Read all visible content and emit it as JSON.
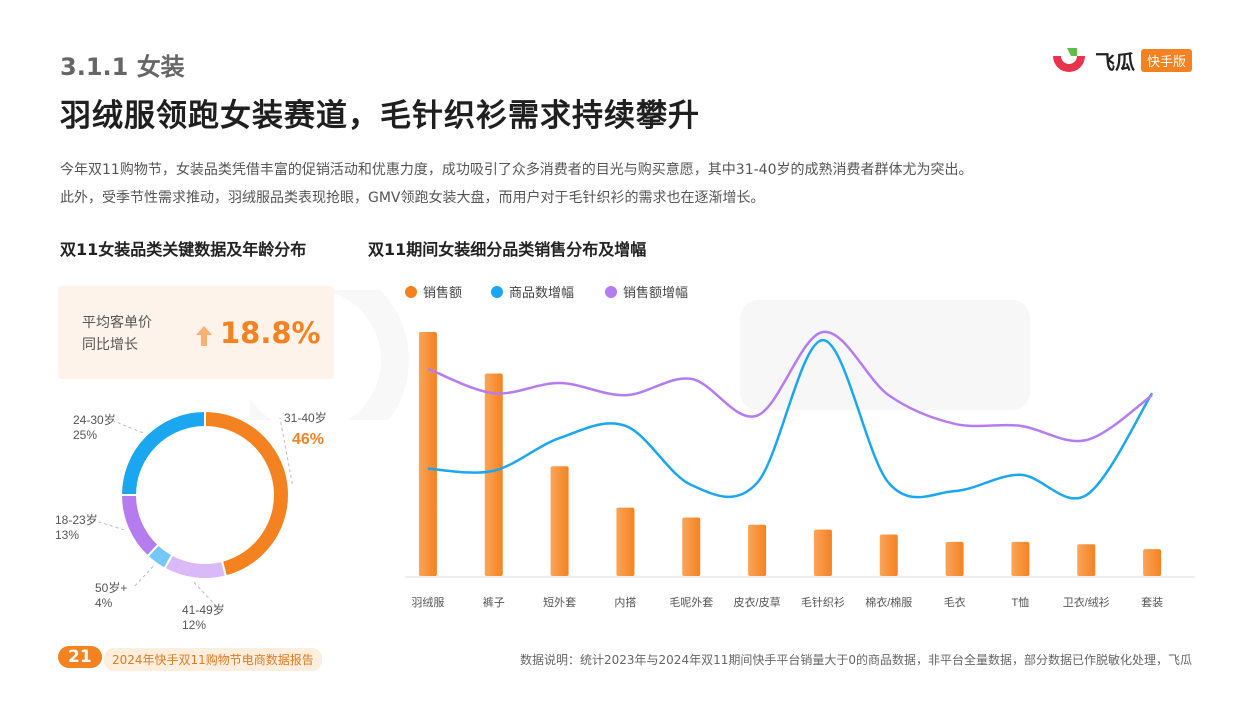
{
  "header": {
    "section": "3.1.1 女装",
    "title": "羽绒服领跑女装赛道，毛针织衫需求持续攀升",
    "description_1": "今年双11购物节，女装品类凭借丰富的促销活动和优惠力度，成功吸引了众多消费者的目光与购买意愿，其中31-40岁的成熟消费者群体尤为突出。",
    "description_2": "此外，受季节性需求推动，羽绒服品类表现抢眼，GMV领跑女装大盘，而用户对于毛针织衫的需求也在逐渐增长。"
  },
  "logo": {
    "name": "飞瓜",
    "tag": "快手版"
  },
  "left_panel": {
    "subtitle": "双11女装品类关键数据及年龄分布",
    "kpi_label_1": "平均客单价",
    "kpi_label_2": "同比增长",
    "kpi_value": "18.8%"
  },
  "right_panel": {
    "subtitle": "双11期间女装细分品类销售分布及增幅"
  },
  "footer": {
    "page_number": "21",
    "report_title": "2024年快手双11购物节电商数据报告",
    "note": "数据说明：统计2023年与2024年双11期间快手平台销量大于0的商品数据，非平台全量数据，部分数据已作脱敏化处理，飞瓜"
  },
  "colors": {
    "orange": "#f58220",
    "blue": "#1aa7f0",
    "purple": "#b57cf0",
    "light_purple": "#d9b9f7",
    "light_blue": "#73c8f7"
  },
  "chart_data": [
    {
      "type": "pie",
      "variant": "donut",
      "slices": [
        {
          "label": "31-40岁",
          "value": 46,
          "value_text": "46%",
          "color": "#f58220"
        },
        {
          "label": "41-49岁",
          "value": 12,
          "value_text": "12%",
          "color": "#d9b9f7"
        },
        {
          "label": "50岁+",
          "value": 4,
          "value_text": "4%",
          "color": "#73c8f7"
        },
        {
          "label": "18-23岁",
          "value": 13,
          "value_text": "13%",
          "color": "#b57cf0"
        },
        {
          "label": "24-30岁",
          "value": 25,
          "value_text": "25%",
          "color": "#1aa7f0"
        }
      ]
    },
    {
      "type": "bar",
      "categories": [
        "羽绒服",
        "裤子",
        "短外套",
        "内搭",
        "毛呢外套",
        "皮衣/皮草",
        "毛针织衫",
        "棉衣/棉服",
        "毛衣",
        "T恤",
        "卫衣/绒衫",
        "套装"
      ],
      "legend_position": "top-left",
      "series": [
        {
          "name": "销售额",
          "kind": "bar",
          "color": "#f58220",
          "values": [
            100,
            83,
            45,
            28,
            24,
            21,
            19,
            17,
            14,
            14,
            13,
            11
          ]
        },
        {
          "name": "商品数增幅",
          "kind": "line",
          "color": "#1aa7f0",
          "values": [
            33,
            32,
            48,
            54,
            25,
            26,
            96,
            26,
            22,
            30,
            20,
            70
          ]
        },
        {
          "name": "销售额增幅",
          "kind": "line",
          "color": "#b57cf0",
          "values": [
            82,
            70,
            75,
            69,
            77,
            59,
            100,
            69,
            55,
            54,
            47,
            69
          ]
        }
      ]
    }
  ]
}
